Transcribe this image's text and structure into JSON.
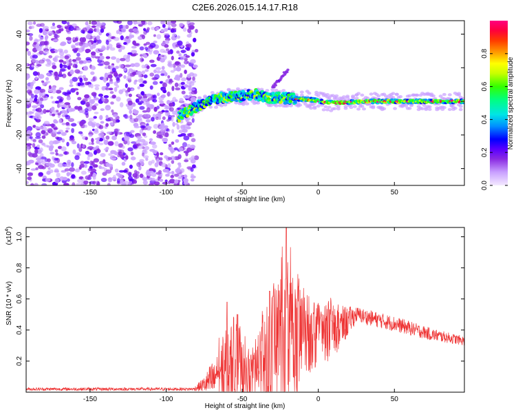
{
  "title": "C2E6.2026.015.14.17.R18",
  "chart_data": [
    {
      "type": "heatmap",
      "title": "C2E6.2026.015.14.17.R18",
      "xlabel": "Height of straight line (km)",
      "ylabel": "Frequency (Hz)",
      "xlim": [
        -192,
        96
      ],
      "ylim": [
        -50,
        48
      ],
      "xticks": [
        -150,
        -100,
        -50,
        0,
        50
      ],
      "yticks": [
        -40,
        -20,
        0,
        20,
        40
      ],
      "colorbar": {
        "label": "Normalized spectral amplitude",
        "range": [
          0,
          1
        ],
        "ticks": [
          "0.0",
          "0.2",
          "0.4",
          "0.6",
          "0.8"
        ],
        "colors": [
          "#f4eaff",
          "#c9a0ff",
          "#8a2be2",
          "#5a00ff",
          "#0000ff",
          "#0090ff",
          "#00e5e5",
          "#00ff80",
          "#33ff00",
          "#c8ff00",
          "#ffff00",
          "#ffa500",
          "#ff3a00",
          "#ff003c",
          "#ff0080"
        ]
      },
      "ridge": [
        {
          "x": -92,
          "f": -9
        },
        {
          "x": -80,
          "f": -3
        },
        {
          "x": -65,
          "f": 2
        },
        {
          "x": -50,
          "f": 3
        },
        {
          "x": -40,
          "f": 4
        },
        {
          "x": -30,
          "f": 2
        },
        {
          "x": -20,
          "f": 2
        },
        {
          "x": -5,
          "f": 1
        },
        {
          "x": 10,
          "f": -1
        },
        {
          "x": 30,
          "f": 0
        },
        {
          "x": 60,
          "f": 0
        },
        {
          "x": 96,
          "f": 0
        }
      ],
      "branch": [
        {
          "x": -30,
          "f": 8
        },
        {
          "x": -20,
          "f": 19
        }
      ]
    },
    {
      "type": "line",
      "xlabel": "Height of straight line (km)",
      "ylabel": "SNR (10 * v/v)",
      "y_multiplier": "(x10",
      "y_multiplier_exp": "4",
      "y_multiplier_close": ")",
      "xlim": [
        -192,
        96
      ],
      "ylim": [
        0,
        1.06
      ],
      "xticks": [
        -150,
        -100,
        -50,
        0,
        50
      ],
      "yticks": [
        0.2,
        0.4,
        0.6,
        0.8,
        1.0
      ],
      "ytick_labels": [
        "0.2",
        "0.4",
        "0.6",
        "0.8",
        "1.0"
      ],
      "series_color": "#ee3333",
      "envelope": [
        {
          "x": -192,
          "base": 0.02,
          "spread": 0.01
        },
        {
          "x": -82,
          "base": 0.02,
          "spread": 0.01
        },
        {
          "x": -75,
          "base": 0.05,
          "spread": 0.05
        },
        {
          "x": -65,
          "base": 0.1,
          "spread": 0.2
        },
        {
          "x": -55,
          "base": 0.12,
          "spread": 0.35
        },
        {
          "x": -45,
          "base": 0.08,
          "spread": 0.15
        },
        {
          "x": -38,
          "base": 0.15,
          "spread": 0.3
        },
        {
          "x": -30,
          "base": 0.2,
          "spread": 0.45
        },
        {
          "x": -20,
          "base": 0.25,
          "spread": 0.6
        },
        {
          "x": -12,
          "base": 0.3,
          "spread": 0.35
        },
        {
          "x": -5,
          "base": 0.35,
          "spread": 0.22
        },
        {
          "x": 10,
          "base": 0.38,
          "spread": 0.18
        },
        {
          "x": 25,
          "base": 0.5,
          "spread": 0.05
        },
        {
          "x": 50,
          "base": 0.44,
          "spread": 0.05
        },
        {
          "x": 75,
          "base": 0.37,
          "spread": 0.04
        },
        {
          "x": 96,
          "base": 0.33,
          "spread": 0.03
        }
      ],
      "spikes": [
        {
          "x": -21,
          "y": 1.06
        },
        {
          "x": -60,
          "y": 0.58
        },
        {
          "x": -53,
          "y": 0.5
        },
        {
          "x": -32,
          "y": 0.65
        },
        {
          "x": -13,
          "y": 0.68
        }
      ]
    }
  ]
}
